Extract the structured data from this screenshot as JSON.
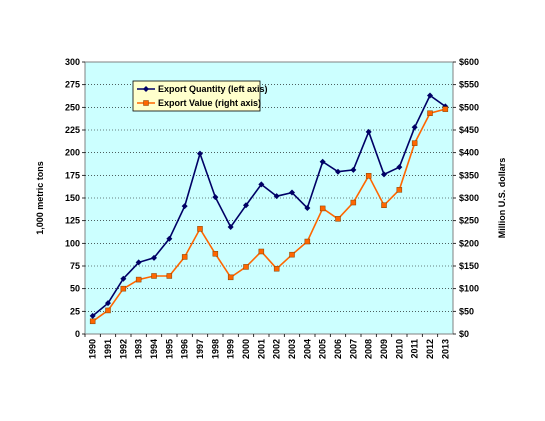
{
  "chart_data": {
    "type": "line",
    "title": "",
    "x": [
      "1990",
      "1991",
      "1992",
      "1993",
      "1994",
      "1995",
      "1996",
      "1997",
      "1998",
      "1999",
      "2000",
      "2001",
      "2002",
      "2003",
      "2004",
      "2005",
      "2006",
      "2007",
      "2008",
      "2009",
      "2010",
      "2011",
      "2012",
      "2013"
    ],
    "series": [
      {
        "name": "Export Quantity (left axis)",
        "axis": "left",
        "color": "#000066",
        "marker": "diamond",
        "values": [
          20,
          34,
          61,
          79,
          84,
          105,
          141,
          199,
          151,
          118,
          142,
          165,
          152,
          156,
          139,
          190,
          179,
          181,
          223,
          176,
          184,
          228,
          263,
          251
        ]
      },
      {
        "name": "Export Value (right axis)",
        "axis": "right",
        "color": "#ff6600",
        "marker": "square",
        "values": [
          28,
          52,
          100,
          120,
          128,
          128,
          170,
          232,
          177,
          125,
          148,
          182,
          144,
          175,
          204,
          277,
          254,
          290,
          349,
          284,
          318,
          421,
          487,
          496
        ]
      }
    ],
    "left_axis": {
      "label": "1,000 metric tons",
      "range": [
        0,
        300
      ],
      "ticks": [
        "0",
        "25",
        "50",
        "75",
        "100",
        "125",
        "150",
        "175",
        "200",
        "225",
        "250",
        "275",
        "300"
      ]
    },
    "right_axis": {
      "label": "Million U.S. dollars",
      "range": [
        0,
        600
      ],
      "ticks": [
        "$0",
        "$50",
        "$100",
        "$150",
        "$200",
        "$250",
        "$300",
        "$350",
        "$400",
        "$450",
        "$500",
        "$550",
        "$600"
      ]
    },
    "grid": "horizontal-dotted",
    "plot_background": "#ccffff",
    "legend_position": "top-left"
  }
}
